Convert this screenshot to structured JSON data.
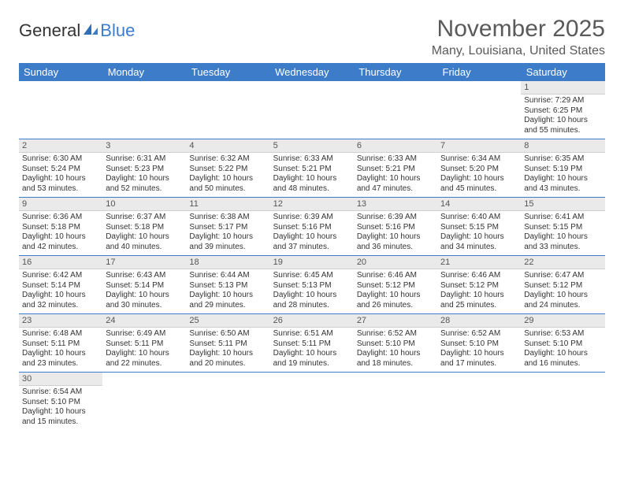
{
  "logo": {
    "text1": "General",
    "text2": "Blue"
  },
  "title": "November 2025",
  "location": "Many, Louisiana, United States",
  "header_bg": "#3d7cc9",
  "weekdays": [
    "Sunday",
    "Monday",
    "Tuesday",
    "Wednesday",
    "Thursday",
    "Friday",
    "Saturday"
  ],
  "weeks": [
    [
      null,
      null,
      null,
      null,
      null,
      null,
      {
        "d": "1",
        "sr": "Sunrise: 7:29 AM",
        "ss": "Sunset: 6:25 PM",
        "dl": "Daylight: 10 hours and 55 minutes."
      }
    ],
    [
      {
        "d": "2",
        "sr": "Sunrise: 6:30 AM",
        "ss": "Sunset: 5:24 PM",
        "dl": "Daylight: 10 hours and 53 minutes."
      },
      {
        "d": "3",
        "sr": "Sunrise: 6:31 AM",
        "ss": "Sunset: 5:23 PM",
        "dl": "Daylight: 10 hours and 52 minutes."
      },
      {
        "d": "4",
        "sr": "Sunrise: 6:32 AM",
        "ss": "Sunset: 5:22 PM",
        "dl": "Daylight: 10 hours and 50 minutes."
      },
      {
        "d": "5",
        "sr": "Sunrise: 6:33 AM",
        "ss": "Sunset: 5:21 PM",
        "dl": "Daylight: 10 hours and 48 minutes."
      },
      {
        "d": "6",
        "sr": "Sunrise: 6:33 AM",
        "ss": "Sunset: 5:21 PM",
        "dl": "Daylight: 10 hours and 47 minutes."
      },
      {
        "d": "7",
        "sr": "Sunrise: 6:34 AM",
        "ss": "Sunset: 5:20 PM",
        "dl": "Daylight: 10 hours and 45 minutes."
      },
      {
        "d": "8",
        "sr": "Sunrise: 6:35 AM",
        "ss": "Sunset: 5:19 PM",
        "dl": "Daylight: 10 hours and 43 minutes."
      }
    ],
    [
      {
        "d": "9",
        "sr": "Sunrise: 6:36 AM",
        "ss": "Sunset: 5:18 PM",
        "dl": "Daylight: 10 hours and 42 minutes."
      },
      {
        "d": "10",
        "sr": "Sunrise: 6:37 AM",
        "ss": "Sunset: 5:18 PM",
        "dl": "Daylight: 10 hours and 40 minutes."
      },
      {
        "d": "11",
        "sr": "Sunrise: 6:38 AM",
        "ss": "Sunset: 5:17 PM",
        "dl": "Daylight: 10 hours and 39 minutes."
      },
      {
        "d": "12",
        "sr": "Sunrise: 6:39 AM",
        "ss": "Sunset: 5:16 PM",
        "dl": "Daylight: 10 hours and 37 minutes."
      },
      {
        "d": "13",
        "sr": "Sunrise: 6:39 AM",
        "ss": "Sunset: 5:16 PM",
        "dl": "Daylight: 10 hours and 36 minutes."
      },
      {
        "d": "14",
        "sr": "Sunrise: 6:40 AM",
        "ss": "Sunset: 5:15 PM",
        "dl": "Daylight: 10 hours and 34 minutes."
      },
      {
        "d": "15",
        "sr": "Sunrise: 6:41 AM",
        "ss": "Sunset: 5:15 PM",
        "dl": "Daylight: 10 hours and 33 minutes."
      }
    ],
    [
      {
        "d": "16",
        "sr": "Sunrise: 6:42 AM",
        "ss": "Sunset: 5:14 PM",
        "dl": "Daylight: 10 hours and 32 minutes."
      },
      {
        "d": "17",
        "sr": "Sunrise: 6:43 AM",
        "ss": "Sunset: 5:14 PM",
        "dl": "Daylight: 10 hours and 30 minutes."
      },
      {
        "d": "18",
        "sr": "Sunrise: 6:44 AM",
        "ss": "Sunset: 5:13 PM",
        "dl": "Daylight: 10 hours and 29 minutes."
      },
      {
        "d": "19",
        "sr": "Sunrise: 6:45 AM",
        "ss": "Sunset: 5:13 PM",
        "dl": "Daylight: 10 hours and 28 minutes."
      },
      {
        "d": "20",
        "sr": "Sunrise: 6:46 AM",
        "ss": "Sunset: 5:12 PM",
        "dl": "Daylight: 10 hours and 26 minutes."
      },
      {
        "d": "21",
        "sr": "Sunrise: 6:46 AM",
        "ss": "Sunset: 5:12 PM",
        "dl": "Daylight: 10 hours and 25 minutes."
      },
      {
        "d": "22",
        "sr": "Sunrise: 6:47 AM",
        "ss": "Sunset: 5:12 PM",
        "dl": "Daylight: 10 hours and 24 minutes."
      }
    ],
    [
      {
        "d": "23",
        "sr": "Sunrise: 6:48 AM",
        "ss": "Sunset: 5:11 PM",
        "dl": "Daylight: 10 hours and 23 minutes."
      },
      {
        "d": "24",
        "sr": "Sunrise: 6:49 AM",
        "ss": "Sunset: 5:11 PM",
        "dl": "Daylight: 10 hours and 22 minutes."
      },
      {
        "d": "25",
        "sr": "Sunrise: 6:50 AM",
        "ss": "Sunset: 5:11 PM",
        "dl": "Daylight: 10 hours and 20 minutes."
      },
      {
        "d": "26",
        "sr": "Sunrise: 6:51 AM",
        "ss": "Sunset: 5:11 PM",
        "dl": "Daylight: 10 hours and 19 minutes."
      },
      {
        "d": "27",
        "sr": "Sunrise: 6:52 AM",
        "ss": "Sunset: 5:10 PM",
        "dl": "Daylight: 10 hours and 18 minutes."
      },
      {
        "d": "28",
        "sr": "Sunrise: 6:52 AM",
        "ss": "Sunset: 5:10 PM",
        "dl": "Daylight: 10 hours and 17 minutes."
      },
      {
        "d": "29",
        "sr": "Sunrise: 6:53 AM",
        "ss": "Sunset: 5:10 PM",
        "dl": "Daylight: 10 hours and 16 minutes."
      }
    ],
    [
      {
        "d": "30",
        "sr": "Sunrise: 6:54 AM",
        "ss": "Sunset: 5:10 PM",
        "dl": "Daylight: 10 hours and 15 minutes."
      },
      null,
      null,
      null,
      null,
      null,
      null
    ]
  ]
}
